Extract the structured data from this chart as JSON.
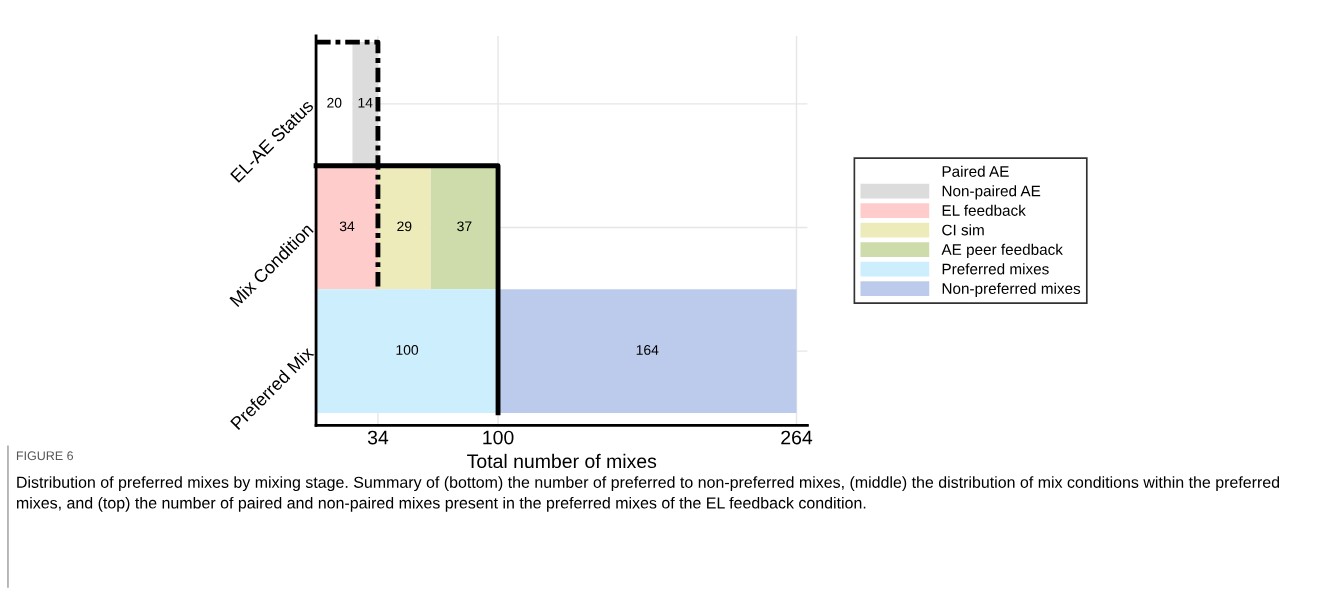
{
  "chart_data": {
    "type": "bar",
    "orientation": "horizontal",
    "stacked": true,
    "data_labels": true,
    "grid": true,
    "legend": "right",
    "xlabel": "Total number of mixes",
    "categories": [
      "EL-AE Status",
      "Mix Condition",
      "Preferred Mix"
    ],
    "xlim": [
      0,
      270
    ],
    "xticks": [
      34,
      100,
      264
    ],
    "series": [
      {
        "name": "Paired AE",
        "color": "#ffffff",
        "values": [
          20,
          null,
          null
        ]
      },
      {
        "name": "Non-paired AE",
        "color": "#dcdcdc",
        "values": [
          14,
          null,
          null
        ]
      },
      {
        "name": "EL feedback",
        "color": "#ffcccc",
        "values": [
          null,
          34,
          null
        ]
      },
      {
        "name": "CI sim",
        "color": "#eeebbb",
        "values": [
          null,
          29,
          null
        ]
      },
      {
        "name": "AE peer feedback",
        "color": "#cddcaa",
        "values": [
          null,
          37,
          null
        ]
      },
      {
        "name": "Preferred mixes",
        "color": "#cdeefc",
        "values": [
          null,
          null,
          100
        ]
      },
      {
        "name": "Non-preferred mixes",
        "color": "#bccbec",
        "values": [
          null,
          null,
          164
        ]
      }
    ],
    "ref_lines": [
      {
        "axis": "x",
        "value": 34,
        "color": "#000000",
        "line_style": "dashed"
      },
      {
        "axis": "x",
        "value": 100,
        "color": "#000000",
        "line_style": "solid"
      }
    ],
    "annotations": [
      "FIGURE 6",
      "Distribution of preferred mixes by mixing stage. Summary of (bottom) the number of preferred to non-preferred mixes, (middle) the distribution of mix conditions within the preferred mixes, and (top) the number of paired and non-paired mixes present in the preferred mixes of the EL feedback condition."
    ]
  }
}
